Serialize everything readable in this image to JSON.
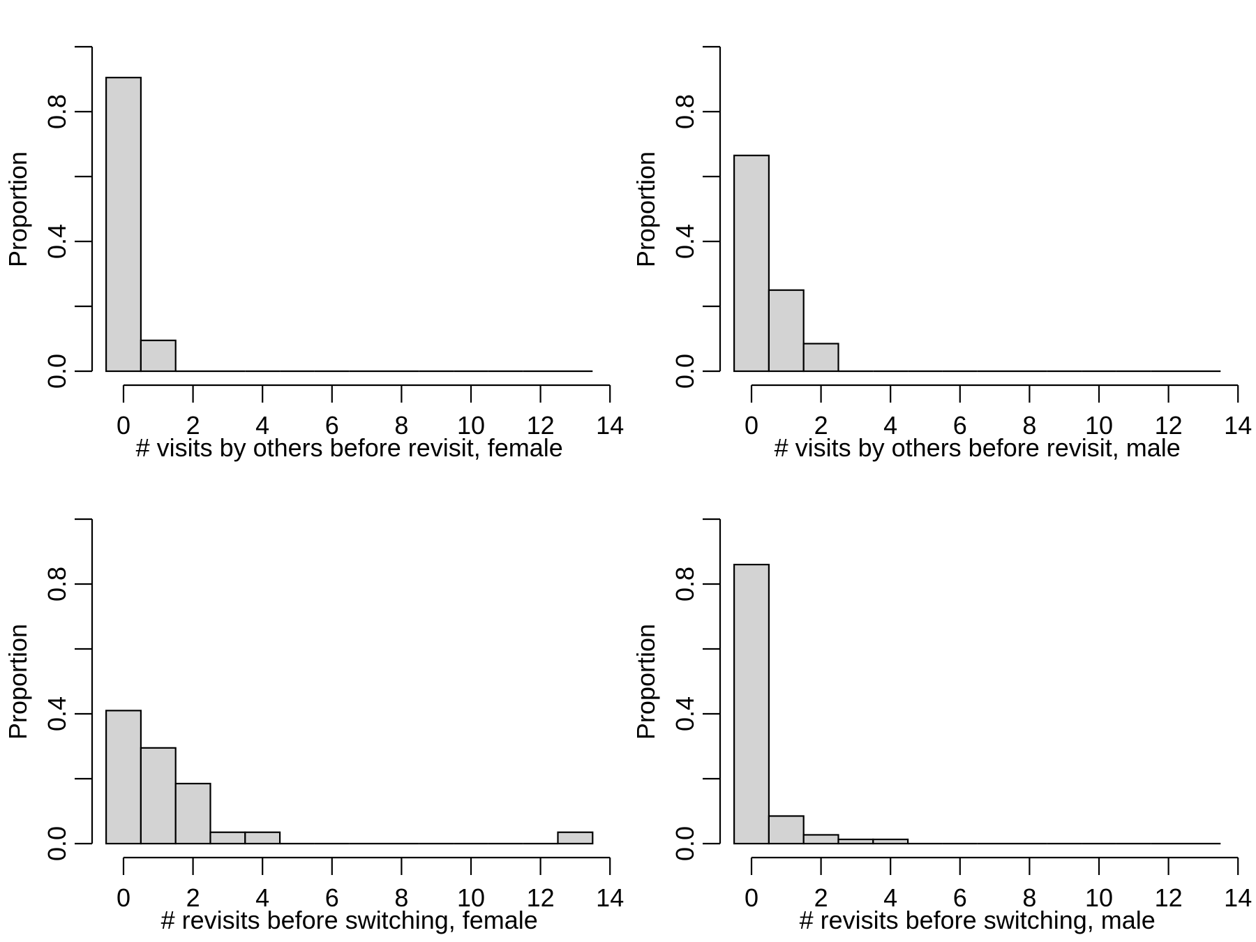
{
  "chart_data": [
    {
      "type": "bar",
      "panel": "top-left",
      "xlabel": "# visits by others before revisit, female",
      "ylabel": "Proportion",
      "bin_width": 1,
      "bin_start": -0.5,
      "x": [
        0,
        1,
        2,
        3,
        4,
        5,
        6,
        7,
        8,
        9,
        10,
        11,
        12,
        13
      ],
      "values": [
        0.905,
        0.095,
        0,
        0,
        0,
        0,
        0,
        0,
        0,
        0,
        0,
        0,
        0,
        0
      ],
      "xlim": [
        -0.5,
        14
      ],
      "ylim": [
        0,
        1.0
      ],
      "xticks": [
        "0",
        "2",
        "4",
        "6",
        "8",
        "10",
        "12",
        "14"
      ],
      "yticks": [
        "0.0",
        "0.4",
        "0.8"
      ],
      "grid": false
    },
    {
      "type": "bar",
      "panel": "top-right",
      "xlabel": "# visits by others before revisit, male",
      "ylabel": "Proportion",
      "bin_width": 1,
      "bin_start": -0.5,
      "x": [
        0,
        1,
        2,
        3,
        4,
        5,
        6,
        7,
        8,
        9,
        10,
        11,
        12,
        13
      ],
      "values": [
        0.665,
        0.25,
        0.085,
        0,
        0,
        0,
        0,
        0,
        0,
        0,
        0,
        0,
        0,
        0
      ],
      "xlim": [
        -0.5,
        14
      ],
      "ylim": [
        0,
        1.0
      ],
      "xticks": [
        "0",
        "2",
        "4",
        "6",
        "8",
        "10",
        "12",
        "14"
      ],
      "yticks": [
        "0.0",
        "0.4",
        "0.8"
      ],
      "grid": false
    },
    {
      "type": "bar",
      "panel": "bottom-left",
      "xlabel": "# revisits before switching, female",
      "ylabel": "Proportion",
      "bin_width": 1,
      "bin_start": -0.5,
      "x": [
        0,
        1,
        2,
        3,
        4,
        5,
        6,
        7,
        8,
        9,
        10,
        11,
        12,
        13
      ],
      "values": [
        0.41,
        0.295,
        0.185,
        0.035,
        0.035,
        0,
        0,
        0,
        0,
        0,
        0,
        0,
        0,
        0.035
      ],
      "xlim": [
        -0.5,
        14
      ],
      "ylim": [
        0,
        1.0
      ],
      "xticks": [
        "0",
        "2",
        "4",
        "6",
        "8",
        "10",
        "12",
        "14"
      ],
      "yticks": [
        "0.0",
        "0.4",
        "0.8"
      ],
      "grid": false
    },
    {
      "type": "bar",
      "panel": "bottom-right",
      "xlabel": "# revisits before switching, male",
      "ylabel": "Proportion",
      "bin_width": 1,
      "bin_start": -0.5,
      "x": [
        0,
        1,
        2,
        3,
        4,
        5,
        6,
        7,
        8,
        9,
        10,
        11,
        12,
        13
      ],
      "values": [
        0.86,
        0.085,
        0.027,
        0.013,
        0.013,
        0,
        0,
        0,
        0,
        0,
        0,
        0,
        0,
        0
      ],
      "xlim": [
        -0.5,
        14
      ],
      "ylim": [
        0,
        1.0
      ],
      "xticks": [
        "0",
        "2",
        "4",
        "6",
        "8",
        "10",
        "12",
        "14"
      ],
      "yticks": [
        "0.0",
        "0.4",
        "0.8"
      ],
      "grid": false
    }
  ]
}
